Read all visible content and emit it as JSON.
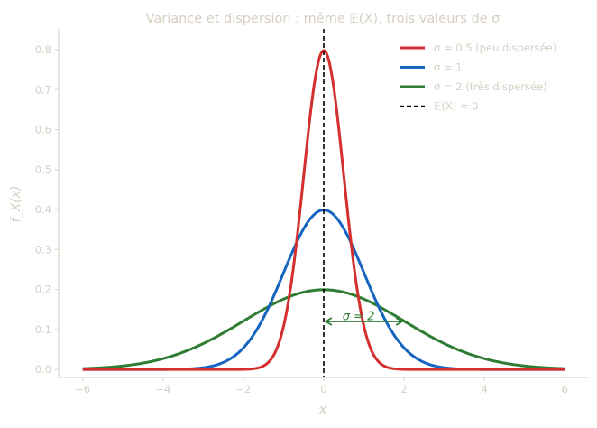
{
  "chart_data": {
    "type": "line",
    "title": "Variance et dispersion : même 𝔼(X), trois valeurs de σ",
    "xlabel": "x",
    "ylabel": "f_X(x)",
    "xlim": [
      -6.6,
      6.6
    ],
    "ylim": [
      -0.02,
      0.852
    ],
    "x_domain": [
      -6,
      6
    ],
    "xticks": [
      -6,
      -4,
      -2,
      0,
      2,
      4,
      6
    ],
    "xtick_labels": [
      "−6",
      "−4",
      "−2",
      "0",
      "2",
      "4",
      "6"
    ],
    "yticks": [
      0.0,
      0.1,
      0.2,
      0.3,
      0.4,
      0.5,
      0.6,
      0.7,
      0.8
    ],
    "ytick_labels": [
      "0.0",
      "0.1",
      "0.2",
      "0.3",
      "0.4",
      "0.5",
      "0.6",
      "0.7",
      "0.8"
    ],
    "grid": false,
    "legend_position": "top-right",
    "series": [
      {
        "name": "σ = 0.5  (peu dispersée)",
        "kind": "normal-pdf",
        "mean": 0,
        "sigma": 0.5,
        "peak": 0.798,
        "color": "#d32f2f"
      },
      {
        "name": "σ = 1",
        "kind": "normal-pdf",
        "mean": 0,
        "sigma": 1,
        "peak": 0.399,
        "color": "#1565c0"
      },
      {
        "name": "σ = 2  (très dispersée)",
        "kind": "normal-pdf",
        "mean": 0,
        "sigma": 2,
        "peak": 0.199,
        "color": "#2e7d32"
      }
    ],
    "vline": {
      "name": "𝔼(X) = 0",
      "x": 0,
      "color": "#000000",
      "style": "dashed"
    },
    "annotation": {
      "text": "σ = 2",
      "x_from": 0,
      "x_to": 2,
      "y": 0.12,
      "text_x": 1.0,
      "text_y": 0.135,
      "color": "#2e7d32"
    },
    "text_color": "#d6cfc2"
  }
}
